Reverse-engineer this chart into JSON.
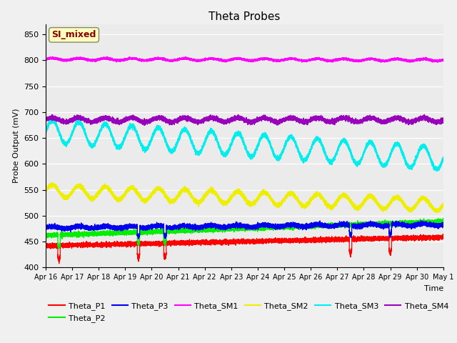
{
  "title": "Theta Probes",
  "ylabel": "Probe Output (mV)",
  "xlabel": "Time",
  "annotation": "SI_mixed",
  "annotation_color": "#8B0000",
  "annotation_bg": "#FFFFC0",
  "fig_bg": "#F0F0F0",
  "plot_bg": "#EBEBEB",
  "grid_color": "#FFFFFF",
  "ylim": [
    400,
    870
  ],
  "yticks": [
    400,
    450,
    500,
    550,
    600,
    650,
    700,
    750,
    800,
    850
  ],
  "xtick_labels": [
    "Apr 16",
    "Apr 17",
    "Apr 18",
    "Apr 19",
    "Apr 20",
    "Apr 21",
    "Apr 22",
    "Apr 23",
    "Apr 24",
    "Apr 25",
    "Apr 26",
    "Apr 27",
    "Apr 28",
    "Apr 29",
    "Apr 30",
    "May 1"
  ],
  "num_points": 15000,
  "days": 15,
  "series": {
    "Theta_P1": {
      "color": "#FF0000",
      "base": 442,
      "trend": 1.1,
      "amp": 0,
      "noise": 2,
      "spike_days": [
        0.5,
        3.5,
        4.5,
        11.5,
        13.0
      ],
      "spike_depth": 30
    },
    "Theta_P2": {
      "color": "#00EE00",
      "base": 462,
      "trend": 1.8,
      "amp": 0,
      "noise": 2,
      "spike_days": [
        0.5,
        3.5,
        4.5
      ],
      "spike_depth": 25
    },
    "Theta_P3": {
      "color": "#0000EE",
      "base": 477,
      "trend": 0.4,
      "amp": 2,
      "noise": 2,
      "spike_days": [
        3.5,
        4.5,
        11.5,
        13.0
      ],
      "spike_depth": 20
    },
    "Theta_SM1": {
      "color": "#FF00FF",
      "base": 802,
      "trend": -0.1,
      "amp": 2,
      "noise": 1,
      "spike_days": [],
      "spike_depth": 0
    },
    "Theta_SM2": {
      "color": "#EEEE00",
      "base": 548,
      "trend": -1.8,
      "amp": 12,
      "noise": 2,
      "spike_days": [],
      "spike_depth": 0
    },
    "Theta_SM3": {
      "color": "#00EEEE",
      "base": 663,
      "trend": -3.5,
      "amp": 22,
      "noise": 2,
      "spike_days": [],
      "spike_depth": 0
    },
    "Theta_SM4": {
      "color": "#9900BB",
      "base": 685,
      "trend": 0.0,
      "amp": 4,
      "noise": 2,
      "spike_days": [],
      "spike_depth": 0
    }
  },
  "legend_order": [
    "Theta_P1",
    "Theta_P2",
    "Theta_P3",
    "Theta_SM1",
    "Theta_SM2",
    "Theta_SM3",
    "Theta_SM4"
  ]
}
